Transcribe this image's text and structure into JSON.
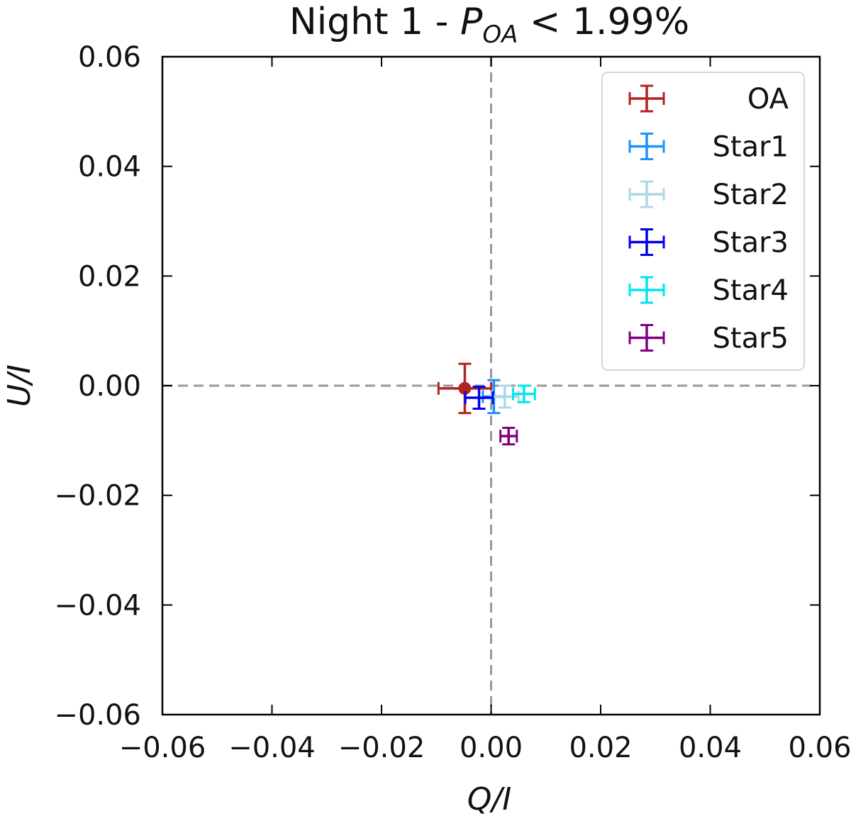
{
  "chart_data": {
    "type": "scatter",
    "title": {
      "prefix": "Night 1 - ",
      "symbol": "P",
      "subscript": "OA",
      "suffix": " < 1.99%"
    },
    "xlabel": "Q/I",
    "ylabel": "U/I",
    "xlim": [
      -0.06,
      0.06
    ],
    "ylim": [
      -0.06,
      0.06
    ],
    "xticks": [
      -0.06,
      -0.04,
      -0.02,
      0.0,
      0.02,
      0.04,
      0.06
    ],
    "yticks": [
      -0.06,
      -0.04,
      -0.02,
      0.0,
      0.02,
      0.04,
      0.06
    ],
    "xtick_labels": [
      "−0.06",
      "−0.04",
      "−0.02",
      "0.00",
      "0.02",
      "0.04",
      "0.06"
    ],
    "ytick_labels": [
      "−0.06",
      "−0.04",
      "−0.02",
      "0.00",
      "0.02",
      "0.04",
      "0.06"
    ],
    "reference_lines": {
      "x": 0.0,
      "y": 0.0,
      "color": "#9a9a9a",
      "style": "dashed"
    },
    "legend_position": "top-right",
    "series": [
      {
        "name": "OA",
        "color": "#b22222",
        "x": -0.0048,
        "y": -0.0005,
        "xerr": 0.0048,
        "yerr": 0.0045,
        "marker": "circle"
      },
      {
        "name": "Star1",
        "color": "#1e90ff",
        "x": 0.0005,
        "y": -0.002,
        "xerr": 0.002,
        "yerr": 0.003,
        "marker": "none"
      },
      {
        "name": "Star2",
        "color": "#add8e6",
        "x": 0.0025,
        "y": -0.002,
        "xerr": 0.0025,
        "yerr": 0.002,
        "marker": "none"
      },
      {
        "name": "Star3",
        "color": "#0000ee",
        "x": -0.0022,
        "y": -0.0022,
        "xerr": 0.0025,
        "yerr": 0.002,
        "marker": "none"
      },
      {
        "name": "Star4",
        "color": "#00e5ee",
        "x": 0.006,
        "y": -0.0015,
        "xerr": 0.002,
        "yerr": 0.0015,
        "marker": "none"
      },
      {
        "name": "Star5",
        "color": "#800080",
        "x": 0.0032,
        "y": -0.0092,
        "xerr": 0.0015,
        "yerr": 0.0015,
        "marker": "none"
      }
    ]
  }
}
